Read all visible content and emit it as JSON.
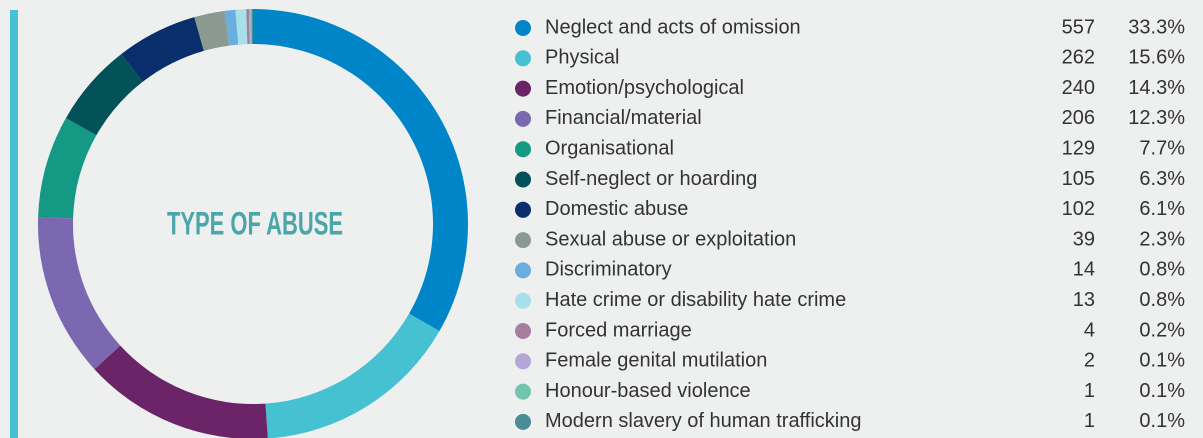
{
  "chart_data": {
    "type": "donut",
    "title": "TYPE OF ABUSE",
    "categories": [
      "Neglect and acts of omission",
      "Physical",
      "Emotion/psychological",
      "Financial/material",
      "Organisational",
      "Self-neglect or hoarding",
      "Domestic abuse",
      "Sexual abuse or exploitation",
      "Discriminatory",
      "Hate crime or disability hate crime",
      "Forced marriage",
      "Female genital mutilation",
      "Honour-based violence",
      "Modern slavery of human trafficking"
    ],
    "values": [
      33.3,
      15.6,
      14.3,
      12.3,
      7.7,
      6.3,
      6.1,
      2.3,
      0.8,
      0.8,
      0.2,
      0.1,
      0.1,
      0.1
    ],
    "value_labels": [
      "33.3%",
      "15.6%",
      "14.3%",
      "12.3%",
      "7.7%",
      "6.3%",
      "6.1%",
      "2.3%",
      "0.8%",
      "0.8%",
      "0.2%",
      "0.1%",
      "0.1%",
      "0.1%"
    ],
    "counts": [
      557,
      262,
      240,
      206,
      129,
      105,
      102,
      39,
      14,
      13,
      4,
      2,
      1,
      1
    ],
    "colors": [
      "#0085c8",
      "#46c1d2",
      "#6b2468",
      "#7b68b0",
      "#149a84",
      "#03525a",
      "#0a2d6c",
      "#8a9a90",
      "#6aaee0",
      "#a8e0ea",
      "#a47f9f",
      "#b5a6d8",
      "#72c4ad",
      "#4a8c98"
    ]
  }
}
